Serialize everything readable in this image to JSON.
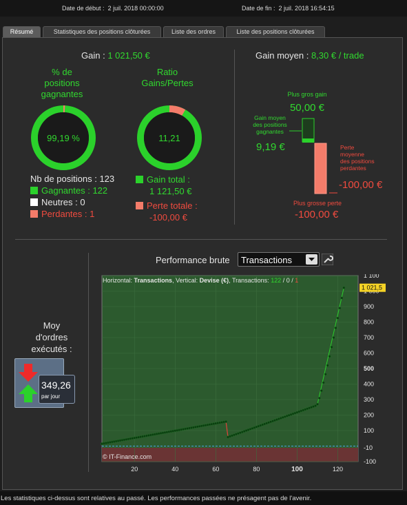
{
  "header": {
    "start_label": "Date de début :",
    "start_value": "2 juil. 2018 00:00:00",
    "end_label": "Date de fin :",
    "end_value": "2 juil. 2018 16:54:15"
  },
  "tabs": [
    {
      "label": "Résumé",
      "active": true
    },
    {
      "label": "Statistiques des positions clôturées",
      "active": false
    },
    {
      "label": "Liste des ordres",
      "active": false
    },
    {
      "label": "Liste des positions clôturées",
      "active": false
    }
  ],
  "summary": {
    "gain_label": "Gain :",
    "gain_value": "1 021,50 €",
    "gain_moyen_label": "Gain moyen :",
    "gain_moyen_value": "8,30 € / trade"
  },
  "win_ratio": {
    "title_lines": [
      "% de",
      "positions",
      "gagnantes"
    ],
    "percent_text": "99,19 %",
    "fraction_green": 0.9919
  },
  "profit_ratio": {
    "title_lines": [
      "Ratio",
      "Gains/Pertes"
    ],
    "value_text": "11,21",
    "fraction_green": 0.918
  },
  "positions": {
    "count_label": "Nb de positions : 123",
    "winners": "Gagnantes : 122",
    "neutral": "Neutres : 0",
    "losers": "Perdantes : 1"
  },
  "totals": {
    "gain_total_label": "Gain total :",
    "gain_total_value": "1 121,50 €",
    "perte_totale_label": "Perte totale :",
    "perte_totale_value": "-100,00 €"
  },
  "bar_section": {
    "plus_gros_gain_label": "Plus gros gain",
    "plus_gros_gain_value": "50,00 €",
    "gain_moyen_lines": [
      "Gain moyen",
      "des positions",
      "gagnantes"
    ],
    "gain_moyen_value": "9,19 €",
    "perte_moyenne_lines": [
      "Perte",
      "moyenne",
      "des positions",
      "perdantes"
    ],
    "perte_moyenne_value": "-100,00 €",
    "plus_grosse_perte_label": "Plus grosse perte",
    "plus_grosse_perte_value": "-100,00 €"
  },
  "moy": {
    "label_lines": [
      "Moy",
      "d'ordres",
      "exécutés :"
    ],
    "value": "349,26",
    "unit": "par jour"
  },
  "performance": {
    "title": "Performance brute",
    "select_value": "Transactions",
    "info_prefix": "Horizontal:",
    "info_h": "Transactions",
    "info_mid": ", Vertical:",
    "info_v": "Devise (€)",
    "info_tr": ", Transactions:",
    "info_wins": "122",
    "info_neutral": "0",
    "info_losses": "1",
    "copyright": "© IT-Finance.com",
    "last_value_badge": "1 021,5"
  },
  "chart_data": {
    "type": "scatter",
    "xlabel": "",
    "ylabel": "",
    "xlim": [
      4,
      130
    ],
    "ylim": [
      -100,
      1100
    ],
    "x_ticks": [
      20,
      40,
      60,
      80,
      100,
      120
    ],
    "x_tick_labels": [
      "20",
      "40",
      "60",
      "80",
      "100",
      "120"
    ],
    "y_ticks": [
      1100,
      1000,
      900,
      800,
      700,
      600,
      500,
      400,
      300,
      200,
      100,
      -10,
      -100
    ],
    "y_tick_labels": [
      "1 100",
      "1 000",
      "900",
      "800",
      "700",
      "600",
      "500",
      "400",
      "300",
      "200",
      "100",
      "-10",
      "-100"
    ],
    "series": [
      {
        "x": [
          1,
          65
        ],
        "y": [
          8,
          158
        ]
      },
      {
        "x": [
          66,
          109
        ],
        "y": [
          58,
          260
        ]
      },
      {
        "x": [
          110,
          123
        ],
        "y": [
          270,
          1021.5
        ]
      }
    ],
    "colors": {
      "background": "#2c5a2e",
      "negative_band": "#6a3434",
      "points": "#0b3a10",
      "line": "#2bd12b",
      "loss_line": "#e0423a"
    }
  },
  "footer": "Les statistiques ci-dessus sont relatives au passé. Les performances passées ne présagent pas de l'avenir."
}
